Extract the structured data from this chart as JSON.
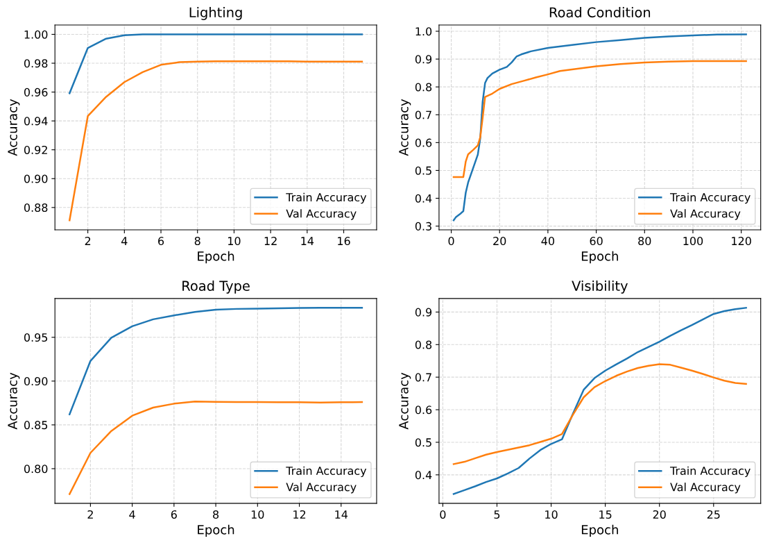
{
  "chart_data": [
    {
      "type": "line",
      "title": "Lighting",
      "xlabel": "Epoch",
      "ylabel": "Accuracy",
      "legend": "lower right",
      "grid": true,
      "x": [
        1,
        2,
        3,
        4,
        5,
        6,
        7,
        8,
        9,
        10,
        11,
        12,
        13,
        14,
        15,
        16,
        17
      ],
      "series": [
        {
          "name": "Train Accuracy",
          "color": "#1f77b4",
          "values": [
            0.9592,
            0.9906,
            0.997,
            0.9994,
            1.0,
            1.0,
            1.0,
            1.0,
            1.0,
            1.0,
            1.0,
            1.0,
            1.0,
            1.0,
            1.0,
            1.0,
            1.0
          ]
        },
        {
          "name": "Val Accuracy",
          "color": "#ff7f0e",
          "values": [
            0.8711,
            0.9434,
            0.9567,
            0.9669,
            0.9738,
            0.9789,
            0.9807,
            0.9811,
            0.9813,
            0.9813,
            0.9813,
            0.9813,
            0.9813,
            0.9811,
            0.9811,
            0.9811,
            0.9811
          ]
        }
      ],
      "xlim": [
        0.2,
        17.8
      ],
      "xticks": [
        2,
        4,
        6,
        8,
        10,
        12,
        14,
        16
      ],
      "ylim": [
        0.8645,
        1.0065
      ],
      "yticks": [
        {
          "value": 0.88,
          "label": "0.88"
        },
        {
          "value": 0.9,
          "label": "0.90"
        },
        {
          "value": 0.92,
          "label": "0.92"
        },
        {
          "value": 0.94,
          "label": "0.94"
        },
        {
          "value": 0.96,
          "label": "0.96"
        },
        {
          "value": 0.98,
          "label": "0.98"
        },
        {
          "value": 1.0,
          "label": "1.00"
        }
      ]
    },
    {
      "type": "line",
      "title": "Road Condition",
      "xlabel": "Epoch",
      "ylabel": "Accuracy",
      "legend": "lower right",
      "grid": true,
      "series": [
        {
          "name": "Train Accuracy",
          "color": "#1f77b4",
          "x": [
            1,
            2,
            4,
            5,
            6,
            7,
            9,
            11,
            12,
            13,
            14,
            15,
            17,
            20,
            23,
            25,
            27,
            29,
            33,
            40,
            50,
            60,
            70,
            80,
            90,
            100,
            110,
            122
          ],
          "values": [
            0.321,
            0.333,
            0.346,
            0.354,
            0.42,
            0.457,
            0.507,
            0.557,
            0.615,
            0.747,
            0.814,
            0.832,
            0.848,
            0.862,
            0.872,
            0.888,
            0.909,
            0.917,
            0.928,
            0.94,
            0.951,
            0.961,
            0.968,
            0.976,
            0.981,
            0.985,
            0.988,
            0.989
          ]
        },
        {
          "name": "Val Accuracy",
          "color": "#ff7f0e",
          "x": [
            1,
            3,
            5,
            6,
            7,
            9,
            11,
            12,
            13,
            14,
            17,
            20,
            25,
            30,
            35,
            40,
            45,
            50,
            60,
            70,
            80,
            90,
            100,
            122
          ],
          "values": [
            0.476,
            0.476,
            0.476,
            0.532,
            0.558,
            0.573,
            0.59,
            0.619,
            0.689,
            0.764,
            0.776,
            0.793,
            0.81,
            0.822,
            0.834,
            0.845,
            0.857,
            0.863,
            0.874,
            0.882,
            0.888,
            0.891,
            0.893,
            0.893
          ]
        }
      ],
      "xlim": [
        -5.05,
        128.05
      ],
      "xticks": [
        0,
        20,
        40,
        60,
        80,
        100,
        120
      ],
      "ylim": [
        0.2865,
        1.0225
      ],
      "yticks": [
        {
          "value": 0.3,
          "label": "0.3"
        },
        {
          "value": 0.4,
          "label": "0.4"
        },
        {
          "value": 0.5,
          "label": "0.5"
        },
        {
          "value": 0.6,
          "label": "0.6"
        },
        {
          "value": 0.7,
          "label": "0.7"
        },
        {
          "value": 0.8,
          "label": "0.8"
        },
        {
          "value": 0.9,
          "label": "0.9"
        },
        {
          "value": 1.0,
          "label": "1.0"
        }
      ]
    },
    {
      "type": "line",
      "title": "Road Type",
      "xlabel": "Epoch",
      "ylabel": "Accuracy",
      "legend": "lower right",
      "grid": true,
      "x": [
        1,
        2,
        3,
        4,
        5,
        6,
        7,
        8,
        9,
        10,
        11,
        12,
        13,
        14,
        15
      ],
      "series": [
        {
          "name": "Train Accuracy",
          "color": "#1f77b4",
          "values": [
            0.862,
            0.923,
            0.9495,
            0.9626,
            0.9705,
            0.975,
            0.979,
            0.9816,
            0.9824,
            0.9826,
            0.983,
            0.9834,
            0.9837,
            0.9837,
            0.9837
          ]
        },
        {
          "name": "Val Accuracy",
          "color": "#ff7f0e",
          "values": [
            0.771,
            0.818,
            0.843,
            0.8605,
            0.8697,
            0.8742,
            0.8766,
            0.8763,
            0.876,
            0.876,
            0.8758,
            0.8758,
            0.8755,
            0.8758,
            0.876
          ]
        }
      ],
      "xlim": [
        0.3,
        15.7
      ],
      "xticks": [
        2,
        4,
        6,
        8,
        10,
        12,
        14
      ],
      "ylim": [
        0.7604,
        0.9943
      ],
      "yticks": [
        {
          "value": 0.8,
          "label": "0.80"
        },
        {
          "value": 0.85,
          "label": "0.85"
        },
        {
          "value": 0.9,
          "label": "0.90"
        },
        {
          "value": 0.95,
          "label": "0.95"
        }
      ]
    },
    {
      "type": "line",
      "title": "Visibility",
      "xlabel": "Epoch",
      "ylabel": "Accuracy",
      "legend": "lower right",
      "grid": true,
      "x": [
        1,
        2,
        3,
        4,
        5,
        6,
        7,
        8,
        9,
        10,
        11,
        12,
        13,
        14,
        15,
        16,
        17,
        18,
        19,
        20,
        21,
        22,
        23,
        24,
        25,
        26,
        27,
        28
      ],
      "series": [
        {
          "name": "Train Accuracy",
          "color": "#1f77b4",
          "values": [
            0.341,
            0.353,
            0.365,
            0.378,
            0.389,
            0.404,
            0.421,
            0.45,
            0.476,
            0.495,
            0.509,
            0.587,
            0.661,
            0.697,
            0.72,
            0.739,
            0.757,
            0.777,
            0.793,
            0.809,
            0.827,
            0.844,
            0.86,
            0.877,
            0.894,
            0.903,
            0.909,
            0.913
          ]
        },
        {
          "name": "Val Accuracy",
          "color": "#ff7f0e",
          "values": [
            0.433,
            0.44,
            0.451,
            0.462,
            0.47,
            0.477,
            0.484,
            0.491,
            0.501,
            0.511,
            0.525,
            0.584,
            0.638,
            0.669,
            0.688,
            0.704,
            0.717,
            0.728,
            0.735,
            0.74,
            0.738,
            0.729,
            0.72,
            0.71,
            0.699,
            0.689,
            0.682,
            0.679
          ]
        }
      ],
      "xlim": [
        -0.35,
        29.35
      ],
      "xticks": [
        0,
        5,
        10,
        15,
        20,
        25
      ],
      "ylim": [
        0.3124,
        0.9416
      ],
      "yticks": [
        {
          "value": 0.4,
          "label": "0.4"
        },
        {
          "value": 0.5,
          "label": "0.5"
        },
        {
          "value": 0.6,
          "label": "0.6"
        },
        {
          "value": 0.7,
          "label": "0.7"
        },
        {
          "value": 0.8,
          "label": "0.8"
        },
        {
          "value": 0.9,
          "label": "0.9"
        }
      ]
    }
  ]
}
